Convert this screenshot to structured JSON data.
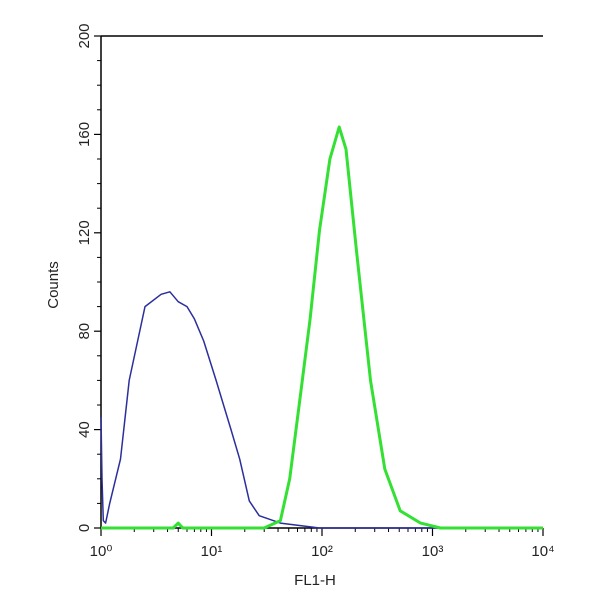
{
  "chart_data": {
    "type": "line",
    "xlabel": "FL1-H",
    "ylabel": "Counts",
    "log_x": true,
    "xlim": [
      1,
      10000
    ],
    "xticks": [
      {
        "value": 1,
        "label": "10⁰"
      },
      {
        "value": 10,
        "label": "10¹"
      },
      {
        "value": 100,
        "label": "10²"
      },
      {
        "value": 1000,
        "label": "10³"
      },
      {
        "value": 10000,
        "label": "10⁴"
      }
    ],
    "ylim": [
      0,
      200
    ],
    "yticks": [
      0,
      40,
      80,
      120,
      160,
      200
    ],
    "series": [
      {
        "color": "#2b2f9c",
        "x": [
          1,
          1.02,
          1.05,
          1.1,
          1.2,
          1.5,
          1.8,
          2.5,
          3.5,
          4.2,
          5,
          6,
          7,
          8.5,
          11,
          15,
          18,
          22,
          27,
          42,
          95,
          10000
        ],
        "values": [
          45,
          20,
          3,
          2,
          10,
          28,
          60,
          90,
          95,
          96,
          92,
          90,
          85,
          76,
          60,
          40,
          28,
          11,
          5,
          2,
          0,
          0
        ]
      },
      {
        "color": "#33e033",
        "x": [
          1,
          4.5,
          5,
          5.5,
          30,
          42,
          51,
          63,
          78,
          95,
          118,
          143,
          165,
          205,
          275,
          370,
          510,
          780,
          1180,
          10000
        ],
        "values": [
          0,
          0,
          2,
          0,
          0,
          3,
          20,
          52,
          85,
          121,
          150,
          163,
          154,
          113,
          60,
          24,
          7,
          2,
          0,
          0
        ]
      }
    ]
  }
}
